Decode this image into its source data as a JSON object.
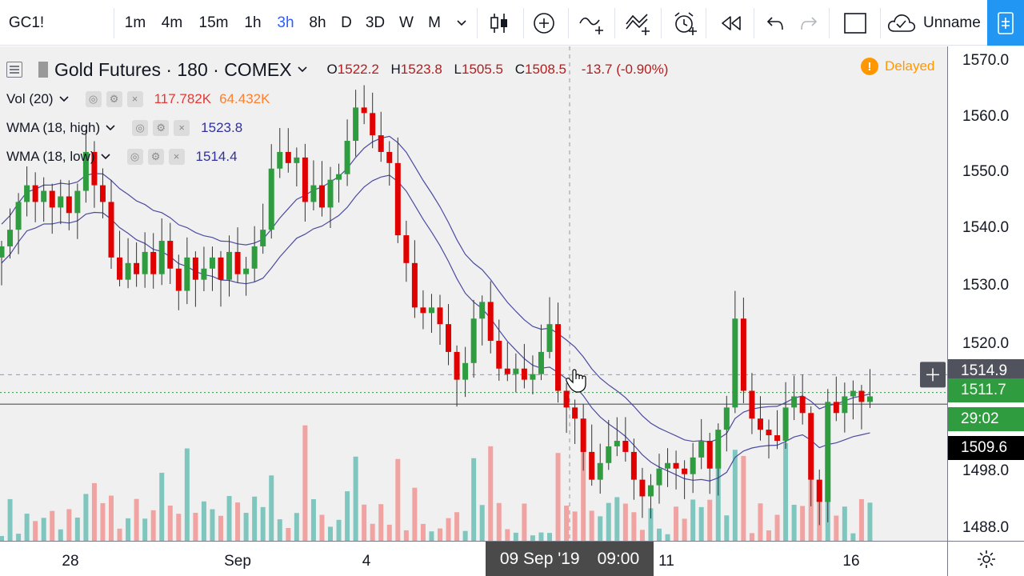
{
  "toolbar": {
    "symbol": "GC1!",
    "intervals": [
      "1m",
      "4m",
      "15m",
      "1h",
      "3h",
      "8h",
      "D",
      "3D",
      "W",
      "M"
    ],
    "active_interval": "3h",
    "layout_name": "Unname"
  },
  "legend": {
    "title": "Gold Futures · 180 · COMEX",
    "ohlc": {
      "o_label": "O",
      "o": "1522.2",
      "h_label": "H",
      "h": "1523.8",
      "l_label": "L",
      "l": "1505.5",
      "c_label": "C",
      "c": "1508.5",
      "change": "-13.7 (-0.90%)"
    },
    "vol": {
      "label": "Vol (20)",
      "v1": "117.782K",
      "v2": "64.432K"
    },
    "wma_high": {
      "label": "WMA (18, high)",
      "value": "1523.8"
    },
    "wma_low": {
      "label": "WMA (18, low)",
      "value": "1514.4"
    },
    "delayed": "Delayed"
  },
  "price_scale": {
    "labels": [
      "1570.0",
      "1560.0",
      "1550.0",
      "1540.0",
      "1530.0",
      "1520.0",
      "1498.0",
      "1488.0"
    ],
    "crosshair": "1514.9",
    "last_price": "1511.7",
    "countdown": "29:02",
    "close_marker": "1509.6"
  },
  "time_scale": {
    "labels": [
      "28",
      "Sep",
      "4",
      "11",
      "16"
    ],
    "crosshair_date": "09 Sep '19",
    "crosshair_time": "09:00"
  },
  "colors": {
    "up": "#26a69a",
    "down": "#ef5350",
    "up_candle": "#2e9c3f",
    "down_candle": "#e00000",
    "vol_up": "#7fc7be",
    "vol_down": "#f0a3a1",
    "wma": "#4b4ba0",
    "accent": "#2962ff"
  },
  "chart_data": {
    "type": "candlestick",
    "title": "Gold Futures · 180 · COMEX",
    "y_range": [
      1485,
      1574
    ],
    "candles_close_path": [
      1538,
      1541,
      1546,
      1549,
      1546,
      1548,
      1545,
      1547,
      1544,
      1548,
      1555,
      1549,
      1546,
      1536,
      1532,
      1535,
      1533,
      1537,
      1533,
      1539,
      1534,
      1530,
      1536,
      1532,
      1534,
      1536,
      1532,
      1537,
      1533,
      1534,
      1538,
      1541,
      1552,
      1555,
      1553,
      1554,
      1546,
      1549,
      1545,
      1550,
      1551,
      1557,
      1563,
      1562,
      1558,
      1555,
      1553,
      1540,
      1535,
      1527,
      1526,
      1527,
      1524,
      1519,
      1514,
      1517,
      1525,
      1528,
      1521,
      1516,
      1515,
      1516,
      1514,
      1515,
      1519,
      1524,
      1512,
      1509,
      1507,
      1501,
      1496,
      1499,
      1502,
      1503,
      1501,
      1496,
      1493,
      1495,
      1498,
      1499,
      1498,
      1497,
      1500,
      1503,
      1498,
      1505,
      1509,
      1525,
      1512,
      1507,
      1505,
      1504,
      1503,
      1509,
      1511,
      1508,
      1496,
      1492,
      1510,
      1508,
      1511,
      1512,
      1510,
      1511
    ]
  }
}
